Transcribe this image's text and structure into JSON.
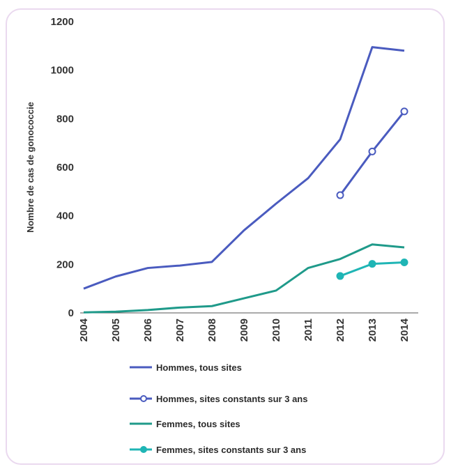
{
  "chart_data": {
    "type": "line",
    "ylabel": "Nombre de cas de gonococcie",
    "ylim": [
      0,
      1200
    ],
    "yticks": [
      0,
      200,
      400,
      600,
      800,
      1000,
      1200
    ],
    "ytick_labels": [
      "0",
      "200",
      "400",
      "600",
      "800",
      "1000",
      "1200"
    ],
    "categories": [
      "2004",
      "2005",
      "2006",
      "2007",
      "2008",
      "2009",
      "2010",
      "2011",
      "2012",
      "2013",
      "2014"
    ],
    "grid": false,
    "legend_position": "bottom",
    "series": [
      {
        "name": "Hommes, tous sites",
        "color": "#4a5bbf",
        "marker": "none",
        "values": [
          100,
          150,
          185,
          195,
          210,
          340,
          450,
          555,
          715,
          1095,
          1080
        ]
      },
      {
        "name": "Hommes, sites constants sur 3 ans",
        "color": "#4a5bbf",
        "marker": "open-circle",
        "values": [
          null,
          null,
          null,
          null,
          null,
          null,
          null,
          null,
          485,
          665,
          830
        ]
      },
      {
        "name": "Femmes, tous sites",
        "color": "#1f9a8a",
        "marker": "none",
        "values": [
          2,
          5,
          12,
          22,
          28,
          60,
          92,
          185,
          222,
          282,
          270
        ]
      },
      {
        "name": "Femmes,  sites constants sur 3 ans",
        "color": "#1fb5b5",
        "marker": "filled-circle",
        "values": [
          null,
          null,
          null,
          null,
          null,
          null,
          null,
          null,
          152,
          202,
          208
        ]
      }
    ]
  }
}
